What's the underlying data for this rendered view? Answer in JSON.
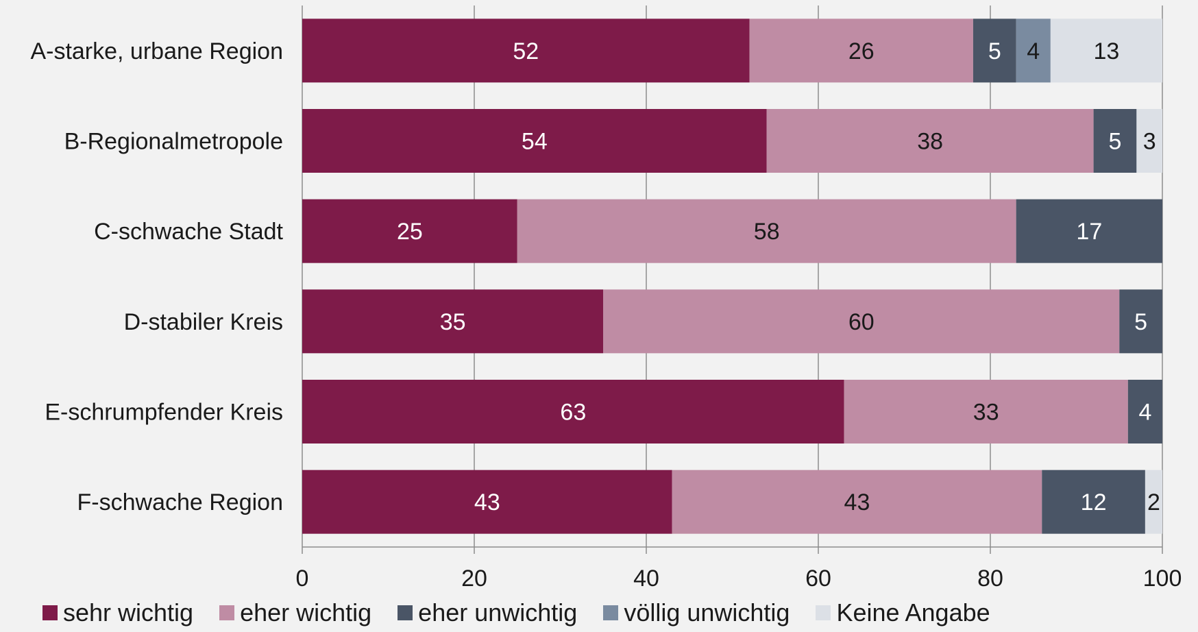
{
  "chart_data": {
    "type": "bar",
    "orientation": "horizontal",
    "stacked": true,
    "title": "",
    "xlabel": "",
    "ylabel": "",
    "xlim": [
      0,
      100
    ],
    "x_ticks": [
      0,
      20,
      40,
      60,
      80,
      100
    ],
    "grid": true,
    "legend_position": "bottom",
    "categories": [
      "A-starke, urbane Region",
      "B-Regionalmetropole",
      "C-schwache Stadt",
      "D-stabiler Kreis",
      "E-schrumpfender Kreis",
      "F-schwache Region"
    ],
    "series": [
      {
        "name": "sehr wichtig",
        "color": "#7e1b49",
        "label_color": "#ffffff",
        "values": [
          52,
          54,
          25,
          35,
          63,
          43
        ]
      },
      {
        "name": "eher wichtig",
        "color": "#bf8ca4",
        "label_color": "#1a1a1a",
        "values": [
          26,
          38,
          58,
          60,
          33,
          43
        ]
      },
      {
        "name": "eher unwichtig",
        "color": "#4a5566",
        "label_color": "#ffffff",
        "values": [
          5,
          5,
          17,
          5,
          4,
          12
        ]
      },
      {
        "name": "völlig unwichtig",
        "color": "#7a8ba0",
        "label_color": "#1a1a1a",
        "values": [
          4,
          0,
          0,
          0,
          0,
          0
        ]
      },
      {
        "name": "Keine Angabe",
        "color": "#dce0e6",
        "label_color": "#1a1a1a",
        "values": [
          13,
          3,
          0,
          0,
          0,
          2
        ]
      }
    ]
  }
}
